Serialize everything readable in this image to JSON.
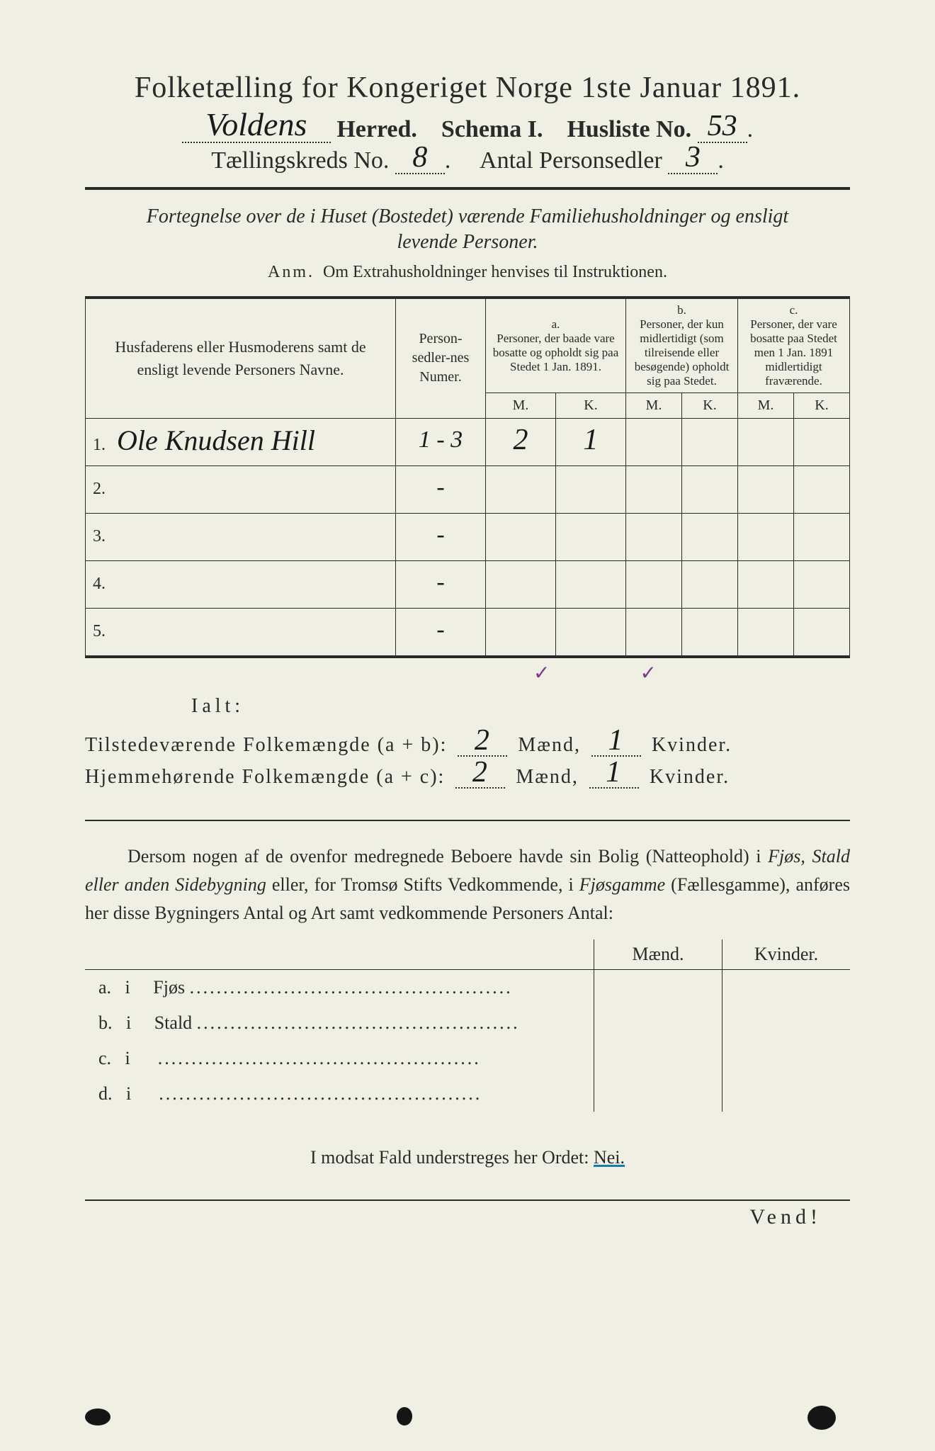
{
  "header": {
    "title": "Folketælling for Kongeriget Norge 1ste Januar 1891.",
    "herred_value": "Voldens",
    "herred_label": "Herred.",
    "schema_label": "Schema I.",
    "husliste_label": "Husliste No.",
    "husliste_value": "53",
    "kreds_label": "Tællingskreds No.",
    "kreds_value": "8",
    "antal_label": "Antal Personsedler",
    "antal_value": "3"
  },
  "subtitle": {
    "line1": "Fortegnelse over de i Huset (Bostedet) værende Familiehusholdninger og ensligt",
    "line2": "levende Personer."
  },
  "anm": {
    "label": "Anm.",
    "text": "Om Extrahusholdninger henvises til Instruktionen."
  },
  "table": {
    "col_names": "Husfaderens eller Husmoderens samt de ensligt levende Personers Navne.",
    "col_sedler": "Person-sedler-nes Numer.",
    "col_a_label": "a.",
    "col_a_text": "Personer, der baade vare bosatte og opholdt sig paa Stedet 1 Jan. 1891.",
    "col_b_label": "b.",
    "col_b_text": "Personer, der kun midlertidigt (som tilreisende eller besøgende) opholdt sig paa Stedet.",
    "col_c_label": "c.",
    "col_c_text": "Personer, der vare bosatte paa Stedet men 1 Jan. 1891 midlertidigt fraværende.",
    "m": "M.",
    "k": "K.",
    "rows": [
      {
        "n": "1.",
        "name": "Ole Knudsen Hill",
        "sedler": "1 - 3",
        "am": "2",
        "ak": "1",
        "bm": "",
        "bk": "",
        "cm": "",
        "ck": ""
      },
      {
        "n": "2.",
        "name": "",
        "sedler": "-",
        "am": "",
        "ak": "",
        "bm": "",
        "bk": "",
        "cm": "",
        "ck": ""
      },
      {
        "n": "3.",
        "name": "",
        "sedler": "-",
        "am": "",
        "ak": "",
        "bm": "",
        "bk": "",
        "cm": "",
        "ck": ""
      },
      {
        "n": "4.",
        "name": "",
        "sedler": "-",
        "am": "",
        "ak": "",
        "bm": "",
        "bk": "",
        "cm": "",
        "ck": ""
      },
      {
        "n": "5.",
        "name": "",
        "sedler": "-",
        "am": "",
        "ak": "",
        "bm": "",
        "bk": "",
        "cm": "",
        "ck": ""
      }
    ],
    "checkmarks": "✓ ✓"
  },
  "totals": {
    "ialt": "Ialt:",
    "tilstede_label": "Tilstedeværende Folkemængde (a + b):",
    "hjemme_label": "Hjemmehørende Folkemængde (a + c):",
    "maend": "Mænd,",
    "kvinder": "Kvinder.",
    "tilstede_m": "2",
    "tilstede_k": "1",
    "hjemme_m": "2",
    "hjemme_k": "1"
  },
  "para": {
    "text1": "Dersom nogen af de ovenfor medregnede Beboere havde sin Bolig (Natteophold) i ",
    "em1": "Fjøs, Stald eller anden Sidebygning",
    "text2": " eller, for Tromsø Stifts Vedkommende, i ",
    "em2": "Fjøsgamme",
    "text3": " (Fællesgamme), anføres her disse Bygningers Antal og Art samt vedkommende Personers Antal:"
  },
  "sub": {
    "maend": "Mænd.",
    "kvinder": "Kvinder.",
    "rows": [
      {
        "l": "a.",
        "i": "i",
        "t": "Fjøs"
      },
      {
        "l": "b.",
        "i": "i",
        "t": "Stald"
      },
      {
        "l": "c.",
        "i": "i",
        "t": ""
      },
      {
        "l": "d.",
        "i": "i",
        "t": ""
      }
    ]
  },
  "nei": {
    "pre": "I modsat Fald understreges her Ordet: ",
    "word": "Nei."
  },
  "vend": "Vend!",
  "colors": {
    "page_bg": "#f0efe4",
    "ink": "#2a2a2a",
    "hand_ink": "#1a1a1a",
    "check_color": "#7a3a8a",
    "underline_blue": "#1a7aa8"
  }
}
